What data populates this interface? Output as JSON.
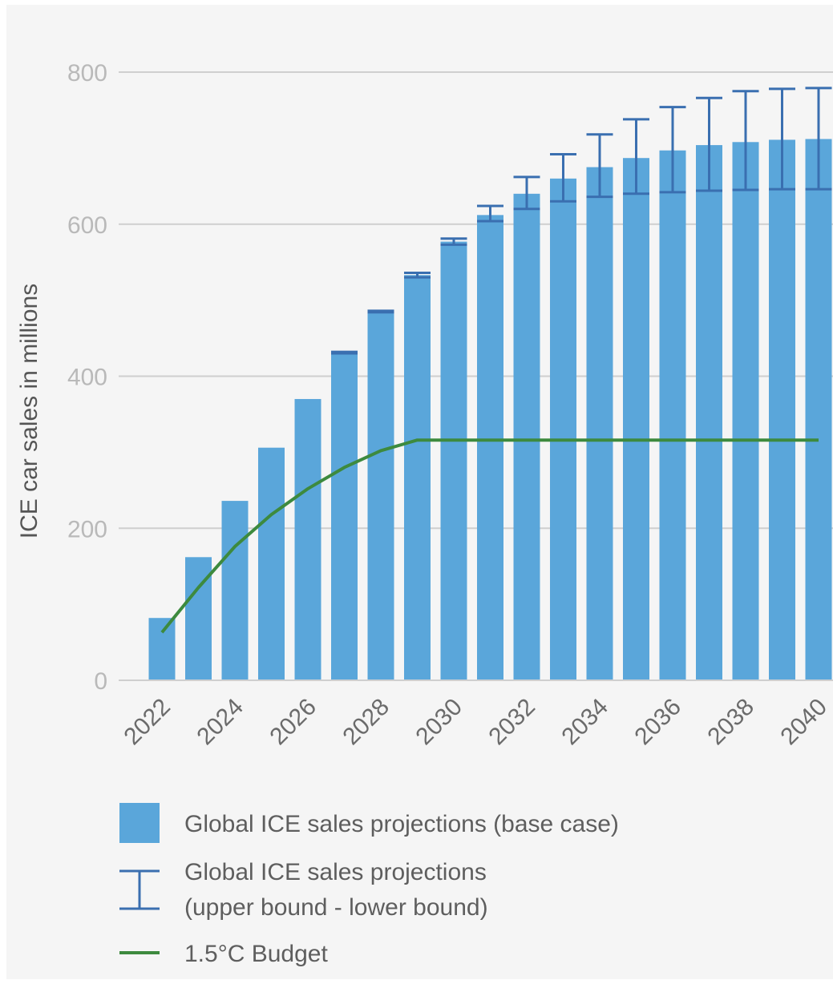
{
  "chart_data": {
    "type": "bar",
    "title": "",
    "xlabel": "",
    "ylabel": "ICE car sales in millions",
    "ylim": [
      0,
      800
    ],
    "yticks": [
      0,
      200,
      400,
      600,
      800
    ],
    "grid": true,
    "x": [
      2022,
      2023,
      2024,
      2025,
      2026,
      2027,
      2028,
      2029,
      2030,
      2031,
      2032,
      2033,
      2034,
      2035,
      2036,
      2037,
      2038,
      2039,
      2040
    ],
    "xtick_labels": [
      "2022",
      "2024",
      "2026",
      "2028",
      "2030",
      "2032",
      "2034",
      "2036",
      "2038",
      "2040"
    ],
    "series": [
      {
        "name": "Global ICE sales projections (base case)",
        "type": "bar",
        "color": "#5aa6da",
        "values": [
          82,
          162,
          236,
          306,
          370,
          430,
          485,
          533,
          577,
          612,
          640,
          660,
          675,
          687,
          697,
          704,
          708,
          711,
          712
        ]
      },
      {
        "name": "Global ICE sales projections (upper bound - lower bound)",
        "type": "errorbar",
        "color": "#3a6fb0",
        "upper": [
          null,
          null,
          null,
          null,
          null,
          432,
          486,
          536,
          581,
          624,
          662,
          692,
          718,
          738,
          754,
          766,
          775,
          778,
          779
        ],
        "lower": [
          null,
          null,
          null,
          null,
          null,
          430,
          484,
          530,
          573,
          604,
          620,
          630,
          636,
          640,
          642,
          644,
          645,
          646,
          646
        ]
      },
      {
        "name": "1.5°C Budget",
        "type": "line",
        "color": "#3d8a3e",
        "values": [
          63,
          122,
          176,
          218,
          252,
          280,
          302,
          316,
          316,
          316,
          316,
          316,
          316,
          316,
          316,
          316,
          316,
          316,
          316
        ]
      }
    ],
    "legend": {
      "placement": "bottom",
      "items": [
        {
          "kind": "bar",
          "lines": [
            "Global ICE sales projections (base case)"
          ]
        },
        {
          "kind": "errorbar",
          "lines": [
            "Global ICE sales projections",
            "(upper bound - lower bound)"
          ]
        },
        {
          "kind": "line",
          "lines": [
            "1.5°C Budget"
          ]
        }
      ]
    }
  }
}
